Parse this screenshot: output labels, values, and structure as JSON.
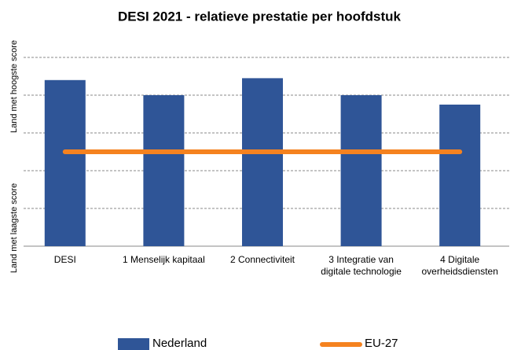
{
  "chart_data": {
    "type": "bar",
    "title": "DESI 2021 - relatieve prestatie per hoofdstuk",
    "y_axis_labels": [
      "Land met hoogste score",
      "Land met laagste score"
    ],
    "categories": [
      "DESI",
      "1 Menselijk kapitaal",
      "2 Connectiviteit",
      "3 Integratie van digitale technologie",
      "4 Digitale overheidsdiensten"
    ],
    "series": [
      {
        "name": "Nederland",
        "type": "bar",
        "color": "#2f5597",
        "values": [
          88,
          80,
          89,
          80,
          75
        ]
      },
      {
        "name": "EU-27",
        "type": "line",
        "color": "#f5821f",
        "values": [
          50,
          50,
          50,
          50,
          50
        ]
      }
    ],
    "ylim": [
      0,
      100
    ],
    "yticks": [
      0,
      20,
      40,
      60,
      80,
      100
    ],
    "grid": true,
    "legend": "bottom"
  }
}
